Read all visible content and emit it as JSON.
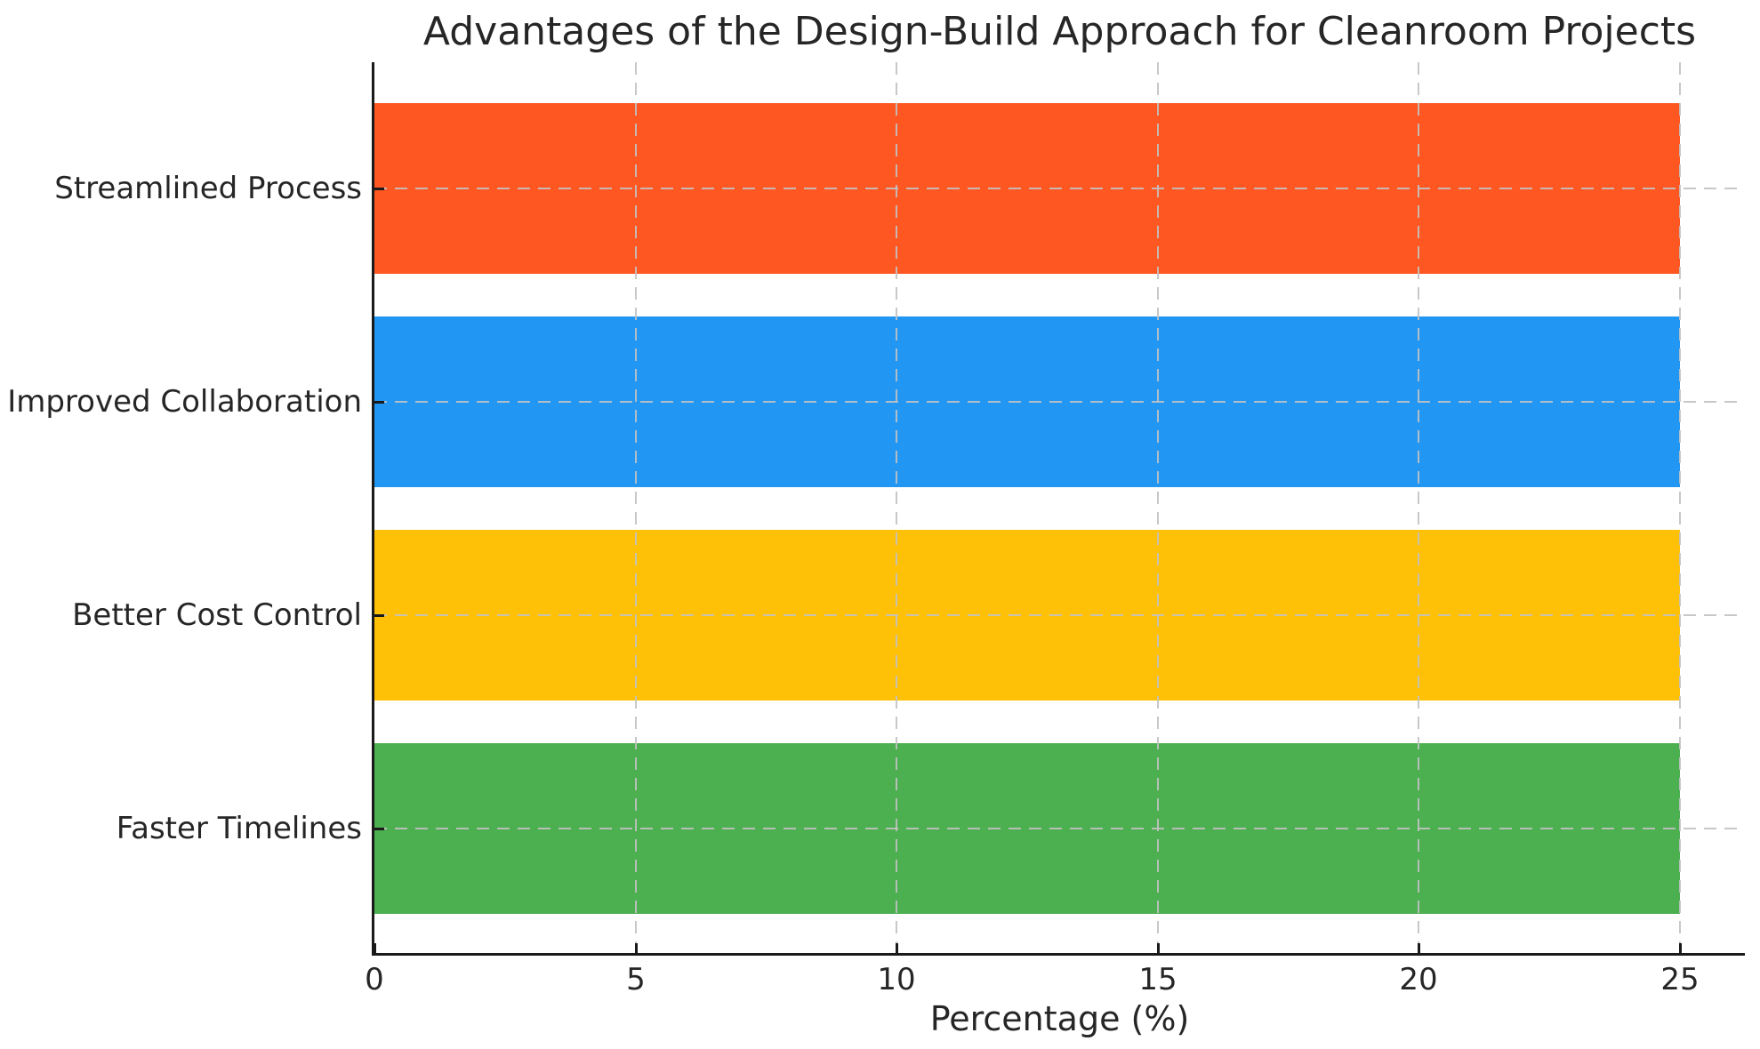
{
  "chart_data": {
    "type": "bar",
    "orientation": "horizontal",
    "title": "Advantages of the Design-Build Approach for Cleanroom Projects",
    "xlabel": "Percentage (%)",
    "categories": [
      "Streamlined Process",
      "Improved Collaboration",
      "Better Cost Control",
      "Faster Timelines"
    ],
    "values": [
      25,
      25,
      25,
      25
    ],
    "bar_colors": [
      "#FF5722",
      "#2196F3",
      "#FFC107",
      "#4CAF50"
    ],
    "xticks": [
      0,
      5,
      10,
      15,
      20,
      25
    ],
    "xlim": [
      0,
      26.25
    ],
    "grid": {
      "style": "dashed",
      "color": "#c2c2c2",
      "axes": "both",
      "above_bars": true
    },
    "legend": "none"
  },
  "colors": {
    "text": "#262626",
    "spine": "#1a1a1a",
    "background": "#ffffff"
  }
}
